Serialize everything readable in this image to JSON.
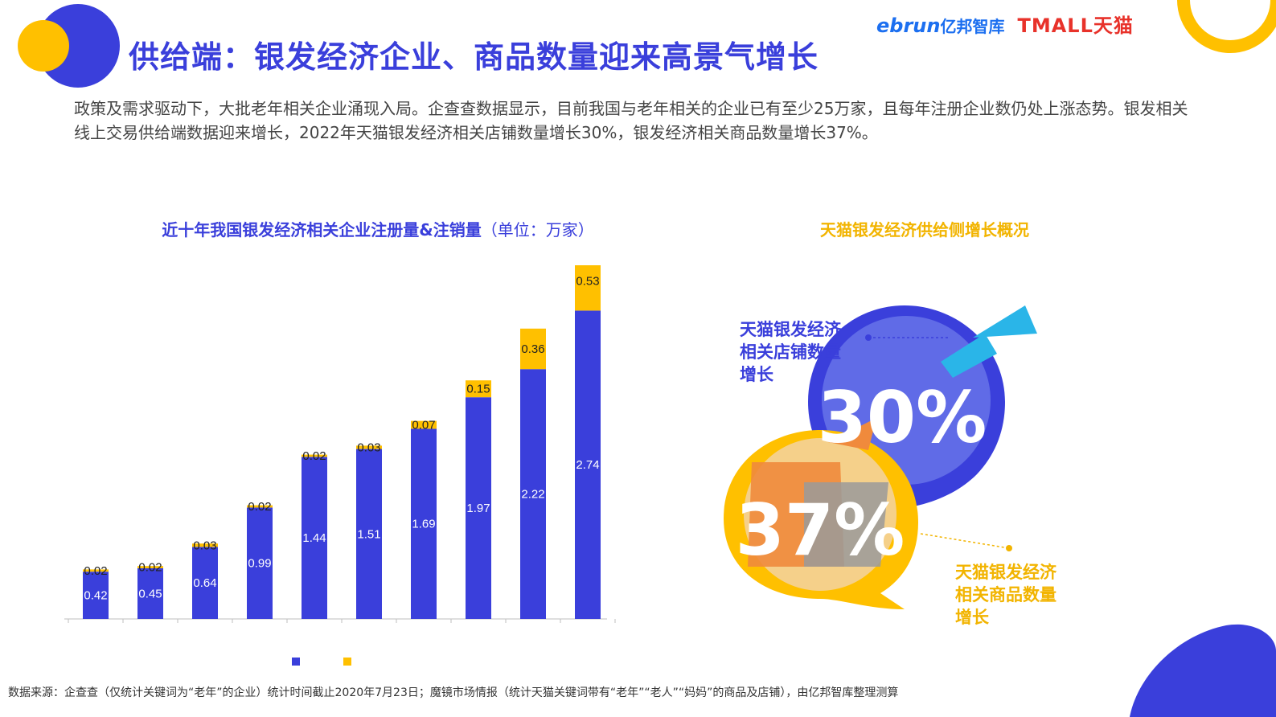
{
  "header": {
    "title": "供给端：银发经济企业、商品数量迎来高景气增长",
    "logo": {
      "ebrun": "ebrun",
      "yibang": "亿邦智库",
      "tmall": "TMALL天猫"
    }
  },
  "intro": "政策及需求驱动下，大批老年相关企业涌现入局。企查查数据显示，目前我国与老年相关的企业已有至少25万家，且每年注册企业数仍处上涨态势。银发相关线上交易供给端数据迎来增长，2022年天猫银发经济相关店铺数量增长30%，银发经济相关商品数量增长37%。",
  "left_chart": {
    "title": "近十年我国银发经济相关企业注册量&注销量",
    "unit": "（单位：万家）"
  },
  "right_panel": {
    "title": "天猫银发经济供给侧增长概况",
    "stores_label": [
      "天猫银发经济",
      "相关店铺数量",
      "增长"
    ],
    "stores_value": "30%",
    "goods_label": [
      "天猫银发经济",
      "相关商品数量",
      "增长"
    ],
    "goods_value": "37%"
  },
  "footnote": "数据来源：企查查（仅统计关键词为“老年”的企业）统计时间截止2020年7月23日；魔镜市场情报（统计天猫关键词带有“老年”“老人”“妈妈”的商品及店铺），由亿邦智库整理测算",
  "colors": {
    "blue": "#3a3fdb",
    "yellow": "#ffc000",
    "accent_yellow": "#f2b400"
  },
  "chart_data": {
    "type": "bar",
    "stacked": true,
    "categories": [
      "",
      "",
      "",
      "",
      "",
      "",
      "",
      "",
      "",
      ""
    ],
    "series": [
      {
        "color": "#3a3fdb",
        "values": [
          0.42,
          0.45,
          0.64,
          0.99,
          1.44,
          1.51,
          1.69,
          1.97,
          2.22,
          2.74
        ]
      },
      {
        "color": "#ffc000",
        "values": [
          0.02,
          0.02,
          0.03,
          0.02,
          0.02,
          0.03,
          0.07,
          0.15,
          0.36,
          0.53
        ]
      }
    ],
    "ylim": [
      0,
      3.3
    ],
    "grid": false,
    "legend": "bottom"
  }
}
